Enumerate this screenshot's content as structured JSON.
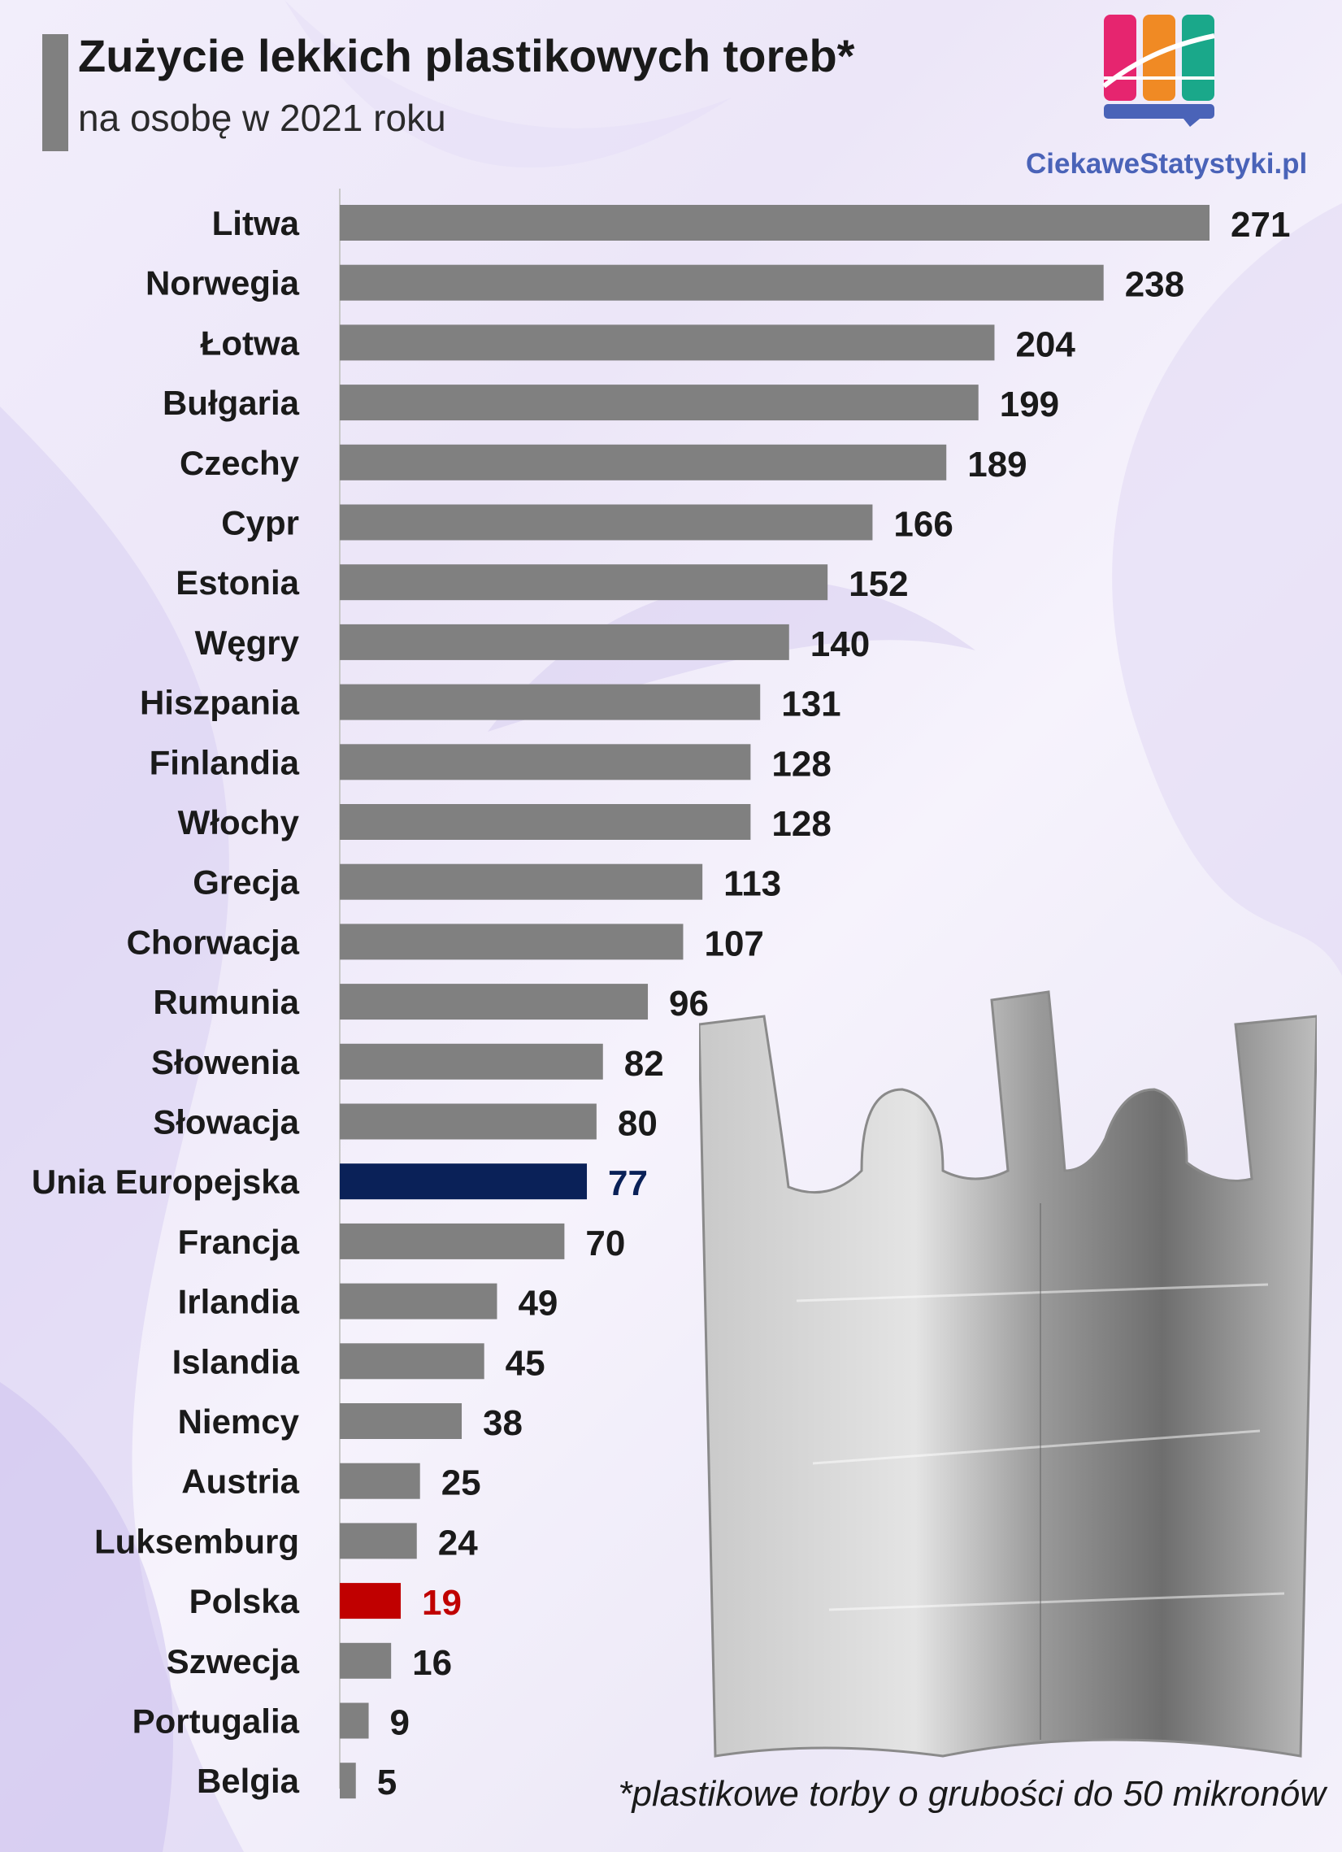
{
  "title": "Zużycie lekkich plastikowych toreb*",
  "subtitle": "na osobę w 2021 roku",
  "logo_text": "CiekaweStatystyki.pl",
  "footnote": "*plastikowe torby o grubości do 50 mikronów",
  "colors": {
    "bar_default": "#808080",
    "bar_eu": "#0a2158",
    "bar_poland": "#c00000",
    "label_default": "#1a1a1a",
    "label_eu": "#0a2158",
    "label_poland": "#c00000"
  },
  "chart_data": {
    "type": "bar",
    "orientation": "horizontal",
    "title": "Zużycie lekkich plastikowych toreb*",
    "subtitle": "na osobę w 2021 roku",
    "categories": [
      "Litwa",
      "Norwegia",
      "Łotwa",
      "Bułgaria",
      "Czechy",
      "Cypr",
      "Estonia",
      "Węgry",
      "Hiszpania",
      "Finlandia",
      "Włochy",
      "Grecja",
      "Chorwacja",
      "Rumunia",
      "Słowenia",
      "Słowacja",
      "Unia Europejska",
      "Francja",
      "Irlandia",
      "Islandia",
      "Niemcy",
      "Austria",
      "Luksemburg",
      "Polska",
      "Szwecja",
      "Portugalia",
      "Belgia"
    ],
    "values": [
      271,
      238,
      204,
      199,
      189,
      166,
      152,
      140,
      131,
      128,
      128,
      113,
      107,
      96,
      82,
      80,
      77,
      70,
      49,
      45,
      38,
      25,
      24,
      19,
      16,
      9,
      5
    ],
    "highlights": {
      "Unia Europejska": "eu",
      "Polska": "poland"
    },
    "xlim": [
      0,
      271
    ],
    "grid": false,
    "legend": "none",
    "data_labels": true
  }
}
